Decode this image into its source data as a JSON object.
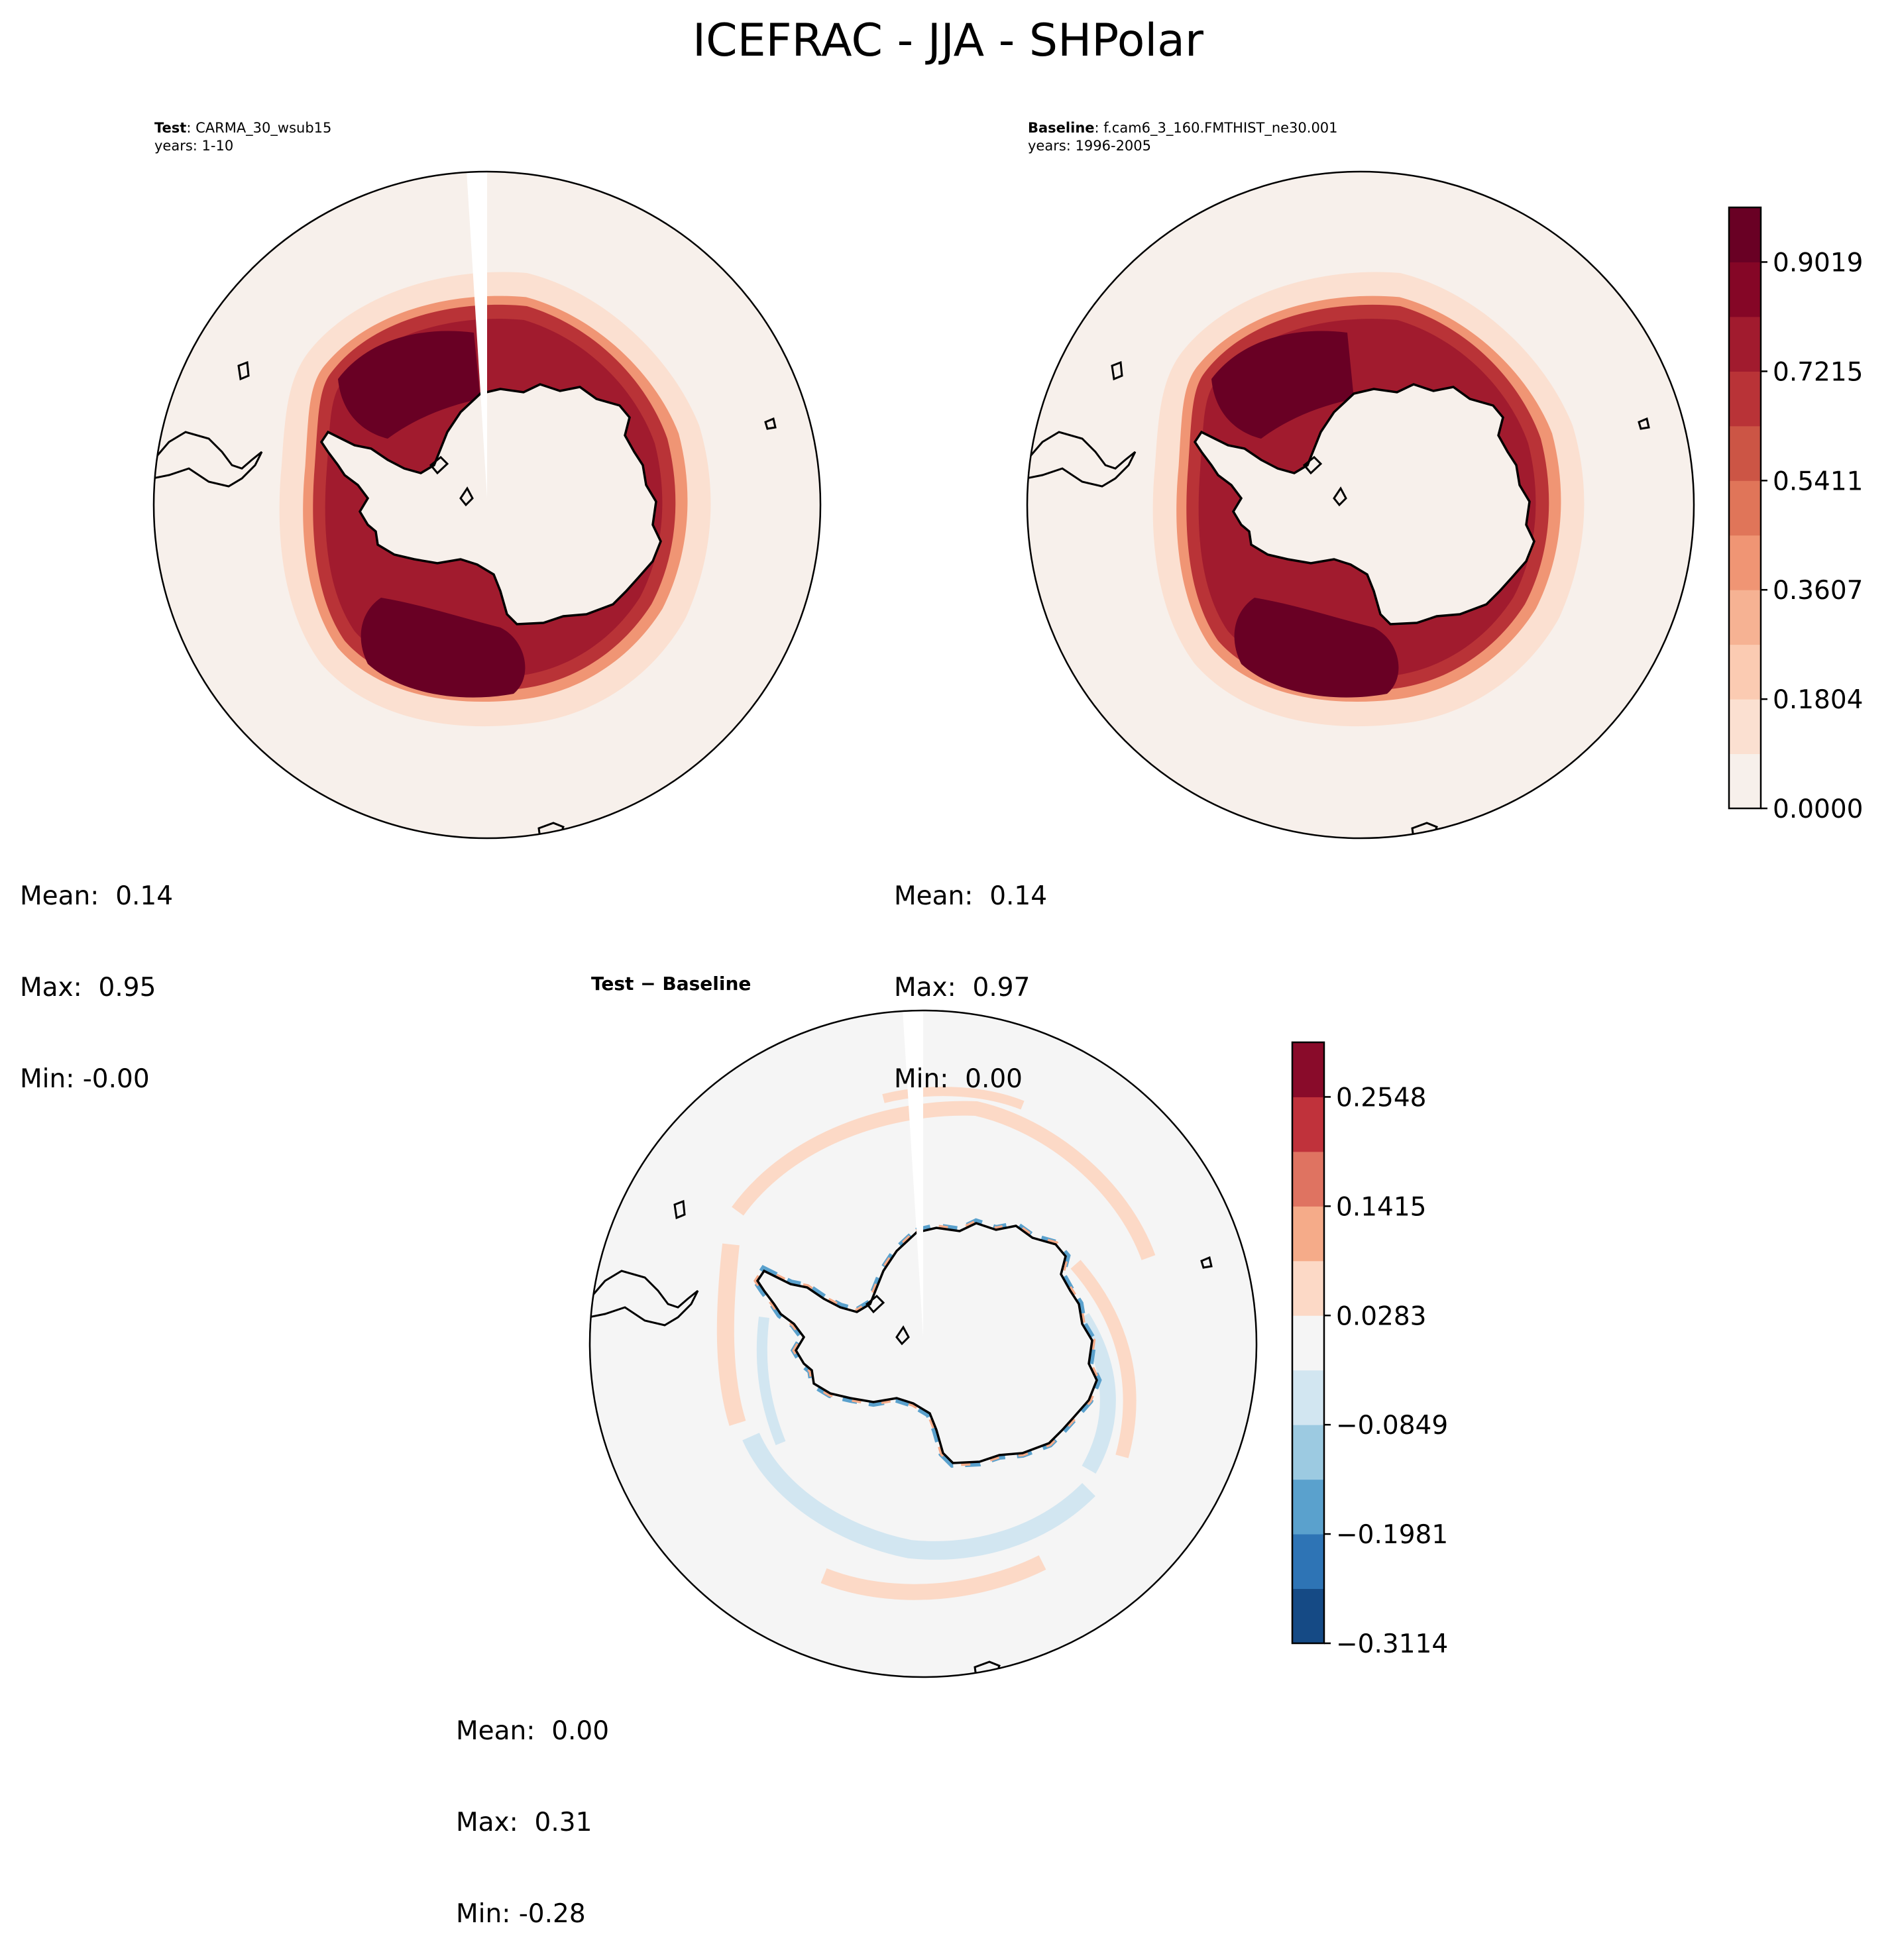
{
  "figure": {
    "title": "ICEFRAC - JJA - SHPolar"
  },
  "panels": {
    "test": {
      "label_bold": "Test",
      "label_rest": ": CARMA_30_wsub15",
      "years": "years: 1-10",
      "mean": "Mean:  0.14",
      "max": "Max:  0.95",
      "min": "Min: -0.00"
    },
    "baseline": {
      "label_bold": "Baseline",
      "label_rest": ": f.cam6_3_160.FMTHIST_ne30.001",
      "years": "years: 1996-2005",
      "mean": "Mean:  0.14",
      "max": "Max:  0.97",
      "min": "Min:  0.00"
    },
    "difference": {
      "title": "Test − Baseline",
      "mean": "Mean:  0.00",
      "max": "Max:  0.31",
      "min": "Min: -0.28"
    }
  },
  "colorbars": {
    "main": {
      "ticks": [
        "0.0000",
        "0.1804",
        "0.3607",
        "0.5411",
        "0.7215",
        "0.9019"
      ],
      "levels": 11,
      "colors": [
        "#f7f0eb",
        "#fbe0d1",
        "#fbcbb2",
        "#f6b293",
        "#f09574",
        "#e07559",
        "#cc5545",
        "#b93337",
        "#a11b2e",
        "#850626",
        "#690024"
      ]
    },
    "diff": {
      "ticks": [
        "−0.3114",
        "−0.1981",
        "−0.0849",
        "0.0283",
        "0.1415",
        "0.2548"
      ],
      "levels": 11,
      "colors": [
        "#154a85",
        "#2e74b5",
        "#5aa1cd",
        "#9ccae1",
        "#d2e6f1",
        "#f5f5f5",
        "#fcd9c6",
        "#f5ab89",
        "#df7361",
        "#c0323b",
        "#890b2a"
      ]
    }
  },
  "chart_data": [
    {
      "type": "heatmap",
      "title": "Test : CARMA_30_wsub15",
      "subtitle": "years: 1-10",
      "variable": "ICEFRAC",
      "season": "JJA",
      "region": "SHPolar",
      "stats": {
        "mean": 0.14,
        "max": 0.95,
        "min": -0.0
      },
      "colorbar_range": [
        0.0,
        0.9921
      ],
      "colorbar_ticks": [
        0.0,
        0.1804,
        0.3607,
        0.5411,
        0.7215,
        0.9019
      ]
    },
    {
      "type": "heatmap",
      "title": "Baseline : f.cam6_3_160.FMTHIST_ne30.001",
      "subtitle": "years: 1996-2005",
      "variable": "ICEFRAC",
      "season": "JJA",
      "region": "SHPolar",
      "stats": {
        "mean": 0.14,
        "max": 0.97,
        "min": 0.0
      },
      "colorbar_range": [
        0.0,
        0.9921
      ],
      "colorbar_ticks": [
        0.0,
        0.1804,
        0.3607,
        0.5411,
        0.7215,
        0.9019
      ]
    },
    {
      "type": "heatmap",
      "title": "Test − Baseline",
      "variable": "ICEFRAC",
      "season": "JJA",
      "region": "SHPolar",
      "stats": {
        "mean": 0.0,
        "max": 0.31,
        "min": -0.28
      },
      "colorbar_range": [
        -0.3114,
        0.3114
      ],
      "colorbar_ticks": [
        -0.3114,
        -0.1981,
        -0.0849,
        0.0283,
        0.1415,
        0.2548
      ]
    }
  ]
}
